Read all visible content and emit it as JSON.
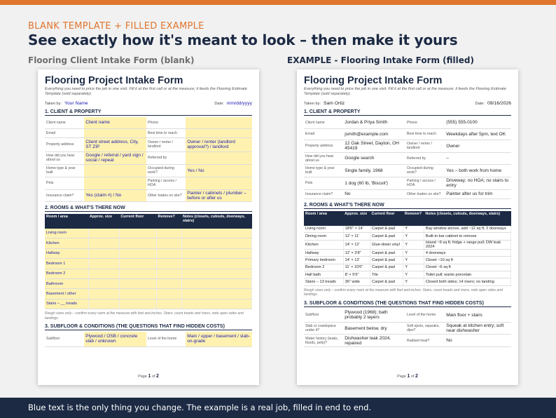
{
  "header": {
    "eyebrow": "BLANK TEMPLATE  +  FILLED EXAMPLE",
    "headline": "See exactly how it's meant to look – then make it yours",
    "label_left": "Flooring Client Intake Form (blank)",
    "label_right": "EXAMPLE - Flooring Intake Form (filled)"
  },
  "footer": {
    "text": "Blue text is the only thing you change. The example is a real job, filled in end to end."
  },
  "colors": {
    "accent": "#e0752e",
    "navy": "#1c2a44",
    "fill_highlight": "#fff2b0",
    "blue_text": "#1a1ab0"
  },
  "blank": {
    "title": "Flooring Project Intake Form",
    "subtitle": "Everything you need to price the job in one visit. Fill it at the first call or at the measure; it feeds the Flooring Estimate Template (sold separately).",
    "taken_by_label": "Taken by:",
    "taken_by_value": "Your Name",
    "date_label": "Date:",
    "date_value": "mm/dd/yyyy",
    "sec1": "1. CLIENT & PROPERTY",
    "f": {
      "client_name_l": "Client name",
      "client_name_v": "Client name",
      "phone_l": "Phone",
      "phone_v": "",
      "email_l": "Email",
      "email_v": "",
      "best_time_l": "Best time to reach",
      "best_time_v": "",
      "address_l": "Property address",
      "address_v": "Client street address, City, ST ZIP",
      "owner_l": "Owner / renter / landlord",
      "owner_v": "Owner / renter (landlord approval?) / landlord",
      "heard_l": "How did you hear about us",
      "heard_v": "Google / referral / yard sign / social / repeat",
      "referred_l": "Referred by",
      "referred_v": "",
      "hometype_l": "Home type & year built",
      "hometype_v": "",
      "occupied_l": "Occupied during work?",
      "occupied_v": "Yes / No",
      "pets_l": "Pets",
      "pets_v": "",
      "parking_l": "Parking / access / HOA",
      "parking_v": "",
      "insurance_l": "Insurance claim?",
      "insurance_v": "Yes (claim #) / No",
      "trades_l": "Other trades on site?",
      "trades_v": "Painter / cabinets / plumber – before or after us"
    },
    "sec2": "2. ROOMS & WHAT'S THERE NOW",
    "room_headers": [
      "Room / area",
      "Approx. size",
      "Current floor",
      "Remove?",
      "Notes (closets, cutouts, doorways, stairs)"
    ],
    "rooms": [
      [
        "Living room",
        "",
        "",
        "",
        ""
      ],
      [
        "Kitchen",
        "",
        "",
        "",
        ""
      ],
      [
        "Hallway",
        "",
        "",
        "",
        ""
      ],
      [
        "Bedroom 1",
        "",
        "",
        "",
        ""
      ],
      [
        "Bedroom 2",
        "",
        "",
        "",
        ""
      ],
      [
        "Bathroom",
        "",
        "",
        "",
        ""
      ],
      [
        "Basement / other",
        "",
        "",
        "",
        ""
      ],
      [
        "Stairs – __ treads",
        "",
        "",
        "",
        ""
      ]
    ],
    "rooms_note": "Rough sizes only – confirm every room at the measure with feet and inches. Stairs: count treads and risers, note open sides and landings.",
    "sec3": "3. SUBFLOOR & CONDITIONS (THE QUESTIONS THAT FIND HIDDEN COSTS)",
    "s": {
      "subfloor_l": "Subfloor",
      "subfloor_v": "Plywood / OSB / concrete slab / unknown",
      "level_l": "Level of the home",
      "level_v": "Main / upper / basement / slab-on-grade"
    },
    "page_prefix": "Page",
    "page_num": "1",
    "page_of": "of",
    "page_total": "2"
  },
  "filled": {
    "title": "Flooring Project Intake Form",
    "subtitle": "Everything you need to price the job in one visit. Fill it at the first call or at the measure; it feeds the Flooring Estimate Template (sold separately).",
    "taken_by_label": "Taken by:",
    "taken_by_value": "Sam Ortiz",
    "date_label": "Date:",
    "date_value": "09/16/2026",
    "sec1": "1. CLIENT & PROPERTY",
    "f": {
      "client_name_l": "Client name",
      "client_name_v": "Jordan & Priya Smith",
      "phone_l": "Phone",
      "phone_v": "(555) 555-0100",
      "email_l": "Email",
      "email_v": "jsmith@example.com",
      "best_time_l": "Best time to reach",
      "best_time_v": "Weekdays after 5pm, text OK",
      "address_l": "Property address",
      "address_v": "12 Oak Street, Dayton, OH 45419",
      "owner_l": "Owner / renter / landlord",
      "owner_v": "Owner",
      "heard_l": "How did you hear about us",
      "heard_v": "Google search",
      "referred_l": "Referred by",
      "referred_v": "–",
      "hometype_l": "Home type & year built",
      "hometype_v": "Single family, 1968",
      "occupied_l": "Occupied during work?",
      "occupied_v": "Yes – both work from home",
      "pets_l": "Pets",
      "pets_v": "1 dog (60 lb, 'Biscuit')",
      "parking_l": "Parking / access / HOA",
      "parking_v": "Driveway; no HOA; no stairs to entry",
      "insurance_l": "Insurance claim?",
      "insurance_v": "No",
      "trades_l": "Other trades on site?",
      "trades_v": "Painter after us for trim"
    },
    "sec2": "2. ROOMS & WHAT'S THERE NOW",
    "room_headers": [
      "Room / area",
      "Approx. size",
      "Current floor",
      "Remove?",
      "Notes (closets, cutouts, doorways, stairs)"
    ],
    "rooms": [
      [
        "Living room",
        "18'6\" × 14'",
        "Carpet & pad",
        "Y",
        "Bay window alcove, add ~12 sq ft; 2 doorways"
      ],
      [
        "Dining room",
        "12' × 11'",
        "Carpet & pad",
        "Y",
        "Built-in bar cabinet to remove"
      ],
      [
        "Kitchen",
        "14' × 12'",
        "Glue-down vinyl",
        "Y",
        "Island ~9 sq ft; fridge + range pull; DW leak 2024"
      ],
      [
        "Hallway",
        "12' × 3'8\"",
        "Carpet & pad",
        "Y",
        "4 doorways"
      ],
      [
        "Primary bedroom",
        "14' × 13'",
        "Carpet & pad",
        "Y",
        "Closet ~10 sq ft"
      ],
      [
        "Bedroom 2",
        "11' × 10'6\"",
        "Carpet & pad",
        "Y",
        "Closet ~6 sq ft"
      ],
      [
        "Hall bath",
        "8' × 5'6\"",
        "Tile",
        "Y",
        "Toilet pull; wants porcelain"
      ],
      [
        "Stairs – 13 treads",
        "36\" wide",
        "Carpet & pad",
        "Y",
        "Closed both sides; 14 risers; no landing"
      ]
    ],
    "rooms_note": "Rough sizes only – confirm every room at the measure with feet and inches. Stairs: count treads and risers, note open sides and landings.",
    "sec3": "3. SUBFLOOR & CONDITIONS (THE QUESTIONS THAT FIND HIDDEN COSTS)",
    "s": {
      "subfloor_l": "Subfloor",
      "subfloor_v": "Plywood (1968); bath probably 2 layers",
      "level_l": "Level of the home",
      "level_v": "Main floor + stairs",
      "slab_l": "Slab or crawlspace under it?",
      "slab_v": "Basement below, dry",
      "squeaks_l": "Soft spots, squeaks, dips?",
      "squeaks_v": "Squeak at kitchen entry; soft near dishwasher",
      "water_l": "Water history (leaks, floods, pets)?",
      "water_v": "Dishwasher leak 2024, repaired",
      "radiant_l": "Radiant heat?",
      "radiant_v": "No"
    },
    "page_prefix": "Page",
    "page_num": "1",
    "page_of": "of",
    "page_total": "2"
  }
}
